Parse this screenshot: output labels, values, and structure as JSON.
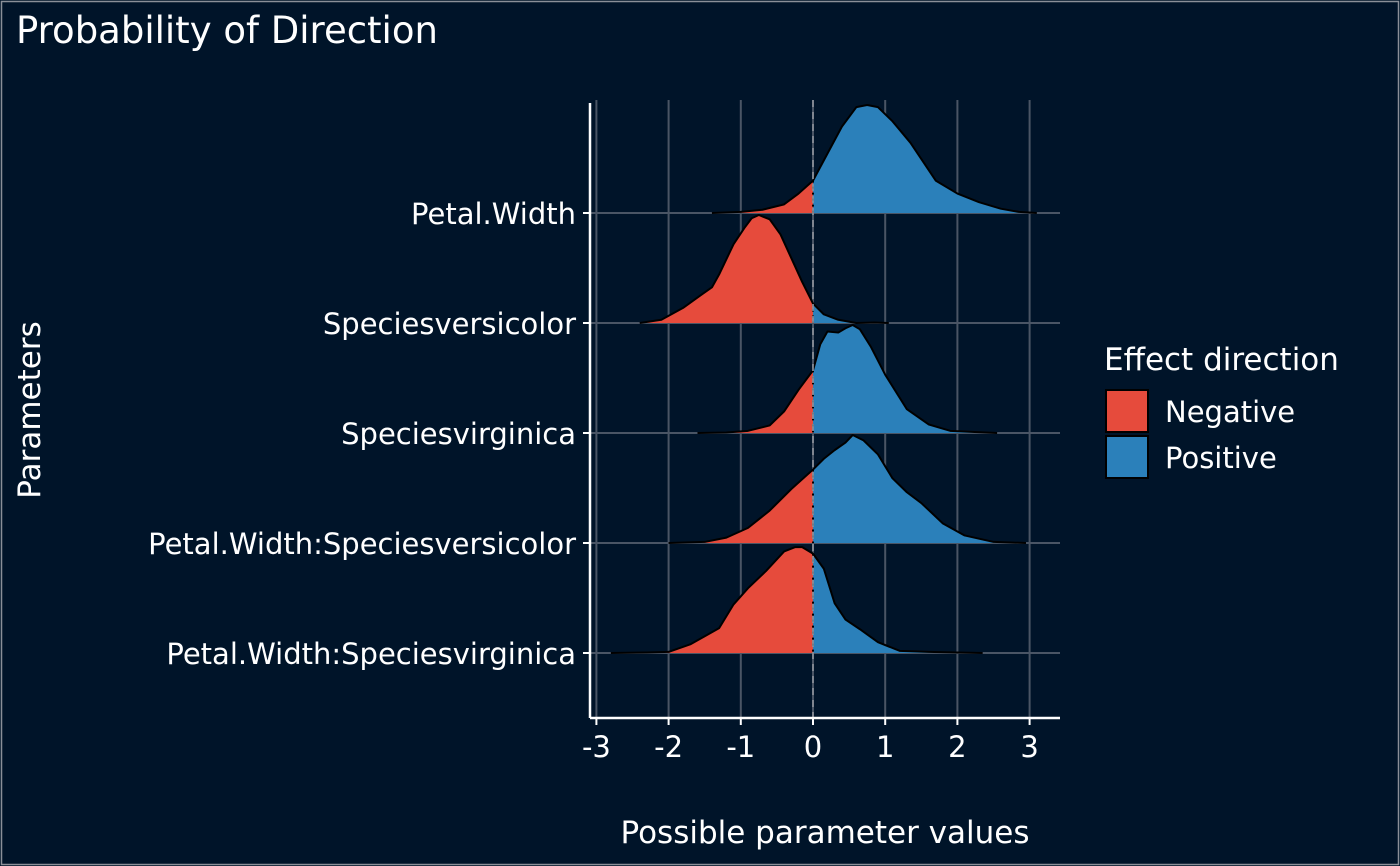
{
  "chart_data": {
    "type": "density-ridgeline",
    "title": "Probability of Direction",
    "xlabel": "Possible parameter values",
    "ylabel": "Parameters",
    "xlim": [
      -3.1,
      3.4
    ],
    "xticks": [
      -3,
      -2,
      -1,
      0,
      1,
      2,
      3
    ],
    "grid": true,
    "legend": {
      "title": "Effect direction",
      "position": "right",
      "items": [
        {
          "label": "Negative",
          "color": "#E64B3C"
        },
        {
          "label": "Positive",
          "color": "#2B80BA"
        }
      ]
    },
    "series": [
      {
        "name": "Petal.Width",
        "x": [
          -1.4,
          -1.0,
          -0.7,
          -0.4,
          -0.2,
          0.0,
          0.2,
          0.4,
          0.6,
          0.75,
          0.9,
          1.1,
          1.35,
          1.7,
          2.0,
          2.3,
          2.6,
          2.85,
          3.1
        ],
        "y": [
          0.0,
          0.01,
          0.03,
          0.08,
          0.18,
          0.3,
          0.55,
          0.8,
          0.98,
          1.0,
          0.98,
          0.85,
          0.65,
          0.3,
          0.18,
          0.1,
          0.04,
          0.01,
          0.0
        ]
      },
      {
        "name": "Speciesversicolor",
        "x": [
          -2.4,
          -2.1,
          -1.8,
          -1.55,
          -1.4,
          -1.3,
          -1.1,
          -0.95,
          -0.85,
          -0.75,
          -0.6,
          -0.45,
          -0.3,
          -0.15,
          0.0,
          0.15,
          0.35,
          0.6,
          0.85,
          1.05
        ],
        "y": [
          0.0,
          0.03,
          0.14,
          0.26,
          0.33,
          0.45,
          0.73,
          0.88,
          0.97,
          1.0,
          0.96,
          0.82,
          0.6,
          0.38,
          0.18,
          0.08,
          0.03,
          0.0,
          0.005,
          0.0
        ]
      },
      {
        "name": "Speciesvirginica",
        "x": [
          -1.6,
          -1.2,
          -0.9,
          -0.6,
          -0.4,
          -0.2,
          0.0,
          0.1,
          0.2,
          0.35,
          0.45,
          0.55,
          0.65,
          0.8,
          1.0,
          1.3,
          1.6,
          1.9,
          2.2,
          2.55
        ],
        "y": [
          0.0,
          0.005,
          0.02,
          0.07,
          0.2,
          0.4,
          0.58,
          0.82,
          0.94,
          0.93,
          0.97,
          1.0,
          0.96,
          0.8,
          0.54,
          0.22,
          0.08,
          0.02,
          0.01,
          0.0
        ]
      },
      {
        "name": "Petal.Width:Speciesversicolor",
        "x": [
          -2.0,
          -1.5,
          -1.2,
          -0.9,
          -0.6,
          -0.3,
          0.0,
          0.15,
          0.3,
          0.45,
          0.55,
          0.7,
          0.9,
          1.1,
          1.3,
          1.5,
          1.8,
          2.1,
          2.5,
          2.95
        ],
        "y": [
          0.0,
          0.01,
          0.05,
          0.14,
          0.3,
          0.5,
          0.68,
          0.78,
          0.86,
          0.93,
          1.0,
          0.95,
          0.82,
          0.6,
          0.47,
          0.37,
          0.18,
          0.07,
          0.01,
          0.0
        ]
      },
      {
        "name": "Petal.Width:Speciesvirginica",
        "x": [
          -2.8,
          -2.3,
          -2.0,
          -1.7,
          -1.3,
          -1.1,
          -0.9,
          -0.65,
          -0.4,
          -0.25,
          -0.15,
          0.0,
          0.15,
          0.3,
          0.45,
          0.65,
          0.9,
          1.2,
          1.6,
          2.0,
          2.35
        ],
        "y": [
          0.0,
          0.005,
          0.01,
          0.08,
          0.23,
          0.45,
          0.6,
          0.76,
          0.94,
          0.98,
          0.98,
          0.92,
          0.78,
          0.46,
          0.31,
          0.22,
          0.1,
          0.02,
          0.01,
          0.005,
          0.0
        ]
      }
    ]
  }
}
